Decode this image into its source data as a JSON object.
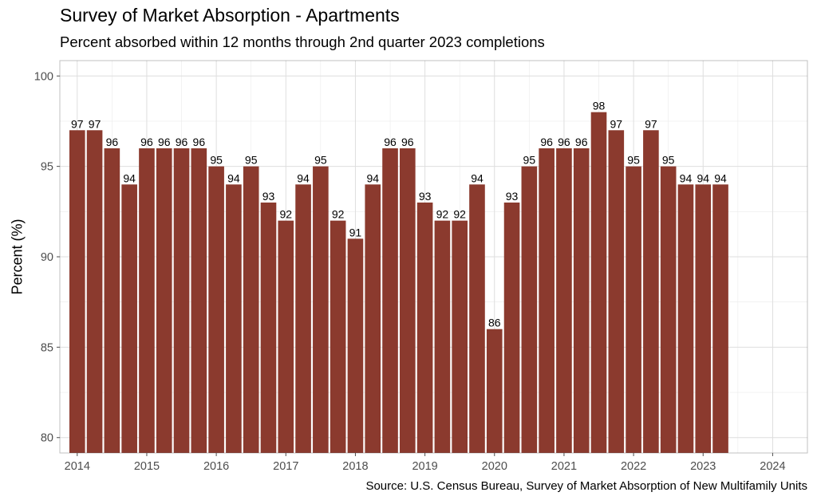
{
  "chart_data": {
    "type": "bar",
    "title": "Survey of Market Absorption - Apartments",
    "subtitle": "Percent absorbed within 12 months through 2nd quarter 2023 completions",
    "ylabel": "Percent (%)",
    "xlabel": "",
    "source": "Source: U.S. Census Bureau, Survey of Market Absorption of New Multifamily Units",
    "bar_color": "#8B3A2E",
    "ylim": [
      80,
      100
    ],
    "yticks": [
      80,
      85,
      90,
      95,
      100
    ],
    "xlim": [
      2013.75,
      2024.5
    ],
    "xticks": [
      2014,
      2015,
      2016,
      2017,
      2018,
      2019,
      2020,
      2021,
      2022,
      2023,
      2024
    ],
    "x": [
      2014.0,
      2014.25,
      2014.5,
      2014.75,
      2015.0,
      2015.25,
      2015.5,
      2015.75,
      2016.0,
      2016.25,
      2016.5,
      2016.75,
      2017.0,
      2017.25,
      2017.5,
      2017.75,
      2018.0,
      2018.25,
      2018.5,
      2018.75,
      2019.0,
      2019.25,
      2019.5,
      2019.75,
      2020.0,
      2020.25,
      2020.5,
      2020.75,
      2021.0,
      2021.25,
      2021.5,
      2021.75,
      2022.0,
      2022.25,
      2022.5,
      2022.75,
      2023.0,
      2023.25
    ],
    "values": [
      97,
      97,
      96,
      94,
      96,
      96,
      96,
      96,
      95,
      94,
      95,
      93,
      92,
      94,
      95,
      92,
      91,
      94,
      96,
      96,
      93,
      92,
      92,
      94,
      86,
      93,
      95,
      96,
      96,
      96,
      98,
      97,
      95,
      97,
      95,
      94,
      94,
      94
    ],
    "grid": true,
    "legend": "none"
  }
}
